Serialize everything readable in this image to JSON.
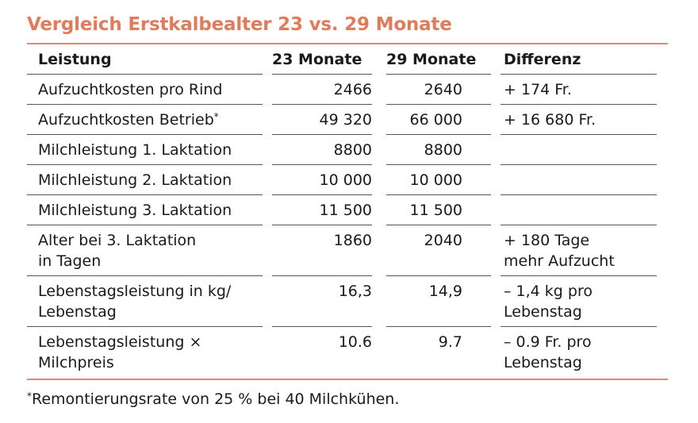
{
  "title": "Vergleich Erstkalbealter 23 vs. 29 Monate",
  "headers": {
    "leistung": "Leistung",
    "m23": "23 Monate",
    "m29": "29 Monate",
    "differenz": "Differenz"
  },
  "rows": [
    {
      "label_1": "Aufzuchtkosten pro Rind",
      "label_2": "",
      "sup": "",
      "v23": "2466",
      "v29": "2640",
      "diff_1": "+ 174 Fr.",
      "diff_2": ""
    },
    {
      "label_1": "Aufzuchtkosten Betrieb",
      "label_2": "",
      "sup": "*",
      "v23": "49 320",
      "v29": "66 000",
      "diff_1": "+ 16 680 Fr.",
      "diff_2": ""
    },
    {
      "label_1": "Milchleistung 1. Laktation",
      "label_2": "",
      "sup": "",
      "v23": "8800",
      "v29": "8800",
      "diff_1": "",
      "diff_2": ""
    },
    {
      "label_1": "Milchleistung 2. Laktation",
      "label_2": "",
      "sup": "",
      "v23": "10 000",
      "v29": "10 000",
      "diff_1": "",
      "diff_2": ""
    },
    {
      "label_1": "Milchleistung 3. Laktation",
      "label_2": "",
      "sup": "",
      "v23": "11 500",
      "v29": "11 500",
      "diff_1": "",
      "diff_2": ""
    },
    {
      "label_1": "Alter bei 3. Laktation",
      "label_2": "in Tagen",
      "sup": "",
      "v23": "1860",
      "v29": "2040",
      "diff_1": "+ 180 Tage",
      "diff_2": "mehr Aufzucht"
    },
    {
      "label_1": "Lebenstagsleistung in kg/",
      "label_2": "Lebenstag",
      "sup": "",
      "v23": "16,3",
      "v29": "14,9",
      "diff_1": "– 1,4 kg pro",
      "diff_2": "Lebenstag"
    },
    {
      "label_1": "Lebenstagsleistung ×",
      "label_2": "Milchpreis",
      "sup": "",
      "v23": "10.6",
      "v29": "9.7",
      "diff_1": "– 0.9 Fr. pro",
      "diff_2": "Lebenstag"
    }
  ],
  "footnote": {
    "mark": "*",
    "text": "Remontierungsrate von 25 % bei 40 Milchkühen."
  }
}
